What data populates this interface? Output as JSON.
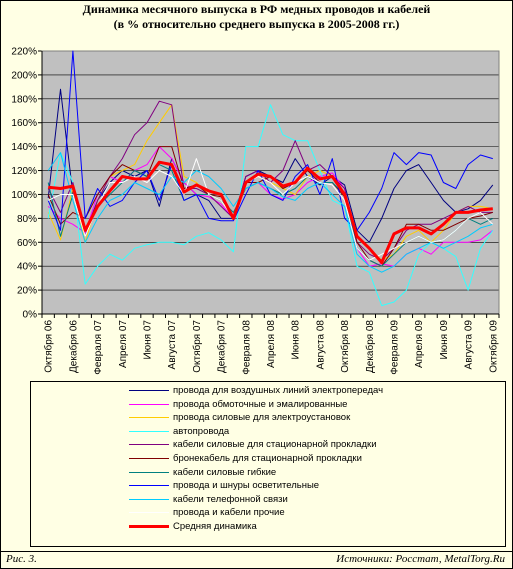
{
  "chart_data": {
    "type": "line",
    "title_lines": [
      "Динамика месячного выпуска в РФ медных проводов и кабелей",
      "(в % относительно среднего выпуска в 2005-2008 гг.)"
    ],
    "xlabel": "",
    "ylabel": "",
    "ylim": [
      0,
      220
    ],
    "yticks": [
      0,
      20,
      40,
      60,
      80,
      100,
      120,
      140,
      160,
      180,
      200,
      220
    ],
    "ytick_labels": [
      "0%",
      "20%",
      "40%",
      "60%",
      "80%",
      "100%",
      "120%",
      "140%",
      "160%",
      "180%",
      "200%",
      "220%"
    ],
    "x_count": 37,
    "x_tick_labels": [
      {
        "i": 0,
        "label": "Октября 06"
      },
      {
        "i": 2,
        "label": "Декабря 06"
      },
      {
        "i": 4,
        "label": "Февраля 07"
      },
      {
        "i": 6,
        "label": "Апреля 07"
      },
      {
        "i": 8,
        "label": "Июня 07"
      },
      {
        "i": 10,
        "label": "Августа 07"
      },
      {
        "i": 12,
        "label": "Октября 07"
      },
      {
        "i": 14,
        "label": "Декабря 07"
      },
      {
        "i": 16,
        "label": "Февраля 08"
      },
      {
        "i": 18,
        "label": "Апреля 08"
      },
      {
        "i": 20,
        "label": "Июня 08"
      },
      {
        "i": 22,
        "label": "Августа 08"
      },
      {
        "i": 24,
        "label": "Октября 08"
      },
      {
        "i": 26,
        "label": "Декабря 08"
      },
      {
        "i": 28,
        "label": "Февраля 09"
      },
      {
        "i": 30,
        "label": "Апреля 09"
      },
      {
        "i": 32,
        "label": "Июня 09"
      },
      {
        "i": 34,
        "label": "Августа 09"
      },
      {
        "i": 36,
        "label": "Октября 09"
      }
    ],
    "grid": true,
    "legend_placement": "bottom",
    "series": [
      {
        "name": "провода для воздушных линий электропередач",
        "color": "#000080",
        "width": 1,
        "values": [
          97,
          188,
          100,
          68,
          95,
          110,
          120,
          115,
          120,
          90,
          130,
          110,
          100,
          95,
          80,
          80,
          115,
          120,
          115,
          110,
          130,
          115,
          108,
          115,
          108,
          70,
          60,
          80,
          105,
          120,
          125,
          110,
          95,
          85,
          88,
          95,
          108
        ]
      },
      {
        "name": "провода обмоточные и эмалированные",
        "color": "#ff00ff",
        "width": 1,
        "values": [
          90,
          80,
          75,
          68,
          100,
          115,
          110,
          120,
          125,
          140,
          130,
          110,
          100,
          98,
          92,
          80,
          110,
          110,
          100,
          96,
          100,
          110,
          115,
          118,
          105,
          55,
          40,
          42,
          40,
          50,
          55,
          50,
          60,
          60,
          60,
          62,
          70
        ]
      },
      {
        "name": "провода силовые для электроустановок",
        "color": "#ffcc00",
        "width": 1,
        "values": [
          85,
          62,
          105,
          60,
          95,
          115,
          120,
          125,
          145,
          160,
          175,
          115,
          110,
          100,
          95,
          80,
          110,
          115,
          110,
          105,
          100,
          115,
          120,
          115,
          100,
          65,
          55,
          45,
          50,
          65,
          70,
          60,
          70,
          85,
          90,
          90,
          88
        ]
      },
      {
        "name": "автопровода",
        "color": "#33ffff",
        "width": 1,
        "values": [
          80,
          135,
          110,
          25,
          40,
          50,
          45,
          55,
          58,
          60,
          60,
          58,
          65,
          68,
          62,
          52,
          140,
          140,
          175,
          150,
          145,
          145,
          120,
          95,
          90,
          40,
          35,
          7,
          10,
          20,
          50,
          60,
          55,
          48,
          20,
          55,
          70
        ]
      },
      {
        "name": "кабели силовые для стационарной прокладки",
        "color": "#800080",
        "width": 1,
        "values": [
          105,
          85,
          110,
          65,
          95,
          115,
          130,
          150,
          160,
          178,
          175,
          105,
          105,
          100,
          90,
          80,
          115,
          120,
          110,
          120,
          145,
          120,
          125,
          115,
          105,
          60,
          50,
          45,
          55,
          70,
          75,
          75,
          80,
          85,
          90,
          85,
          85
        ]
      },
      {
        "name": "бронекабель для стационарной прокладки",
        "color": "#800000",
        "width": 1,
        "values": [
          100,
          75,
          85,
          80,
          100,
          115,
          125,
          120,
          115,
          140,
          140,
          105,
          108,
          100,
          98,
          82,
          110,
          110,
          115,
          105,
          110,
          120,
          110,
          110,
          98,
          60,
          45,
          40,
          55,
          75,
          75,
          70,
          70,
          75,
          80,
          82,
          85
        ]
      },
      {
        "name": "кабели силовые гибкие",
        "color": "#008080",
        "width": 1,
        "values": [
          110,
          65,
          100,
          70,
          90,
          100,
          110,
          120,
          115,
          125,
          120,
          95,
          100,
          100,
          95,
          85,
          105,
          110,
          105,
          100,
          105,
          115,
          110,
          110,
          100,
          55,
          45,
          40,
          50,
          60,
          65,
          60,
          62,
          70,
          80,
          75,
          80
        ]
      },
      {
        "name": "провода и шнуры осветительные",
        "color": "#0000ff",
        "width": 1,
        "values": [
          95,
          70,
          220,
          80,
          105,
          90,
          95,
          110,
          120,
          95,
          125,
          95,
          100,
          80,
          78,
          78,
          100,
          120,
          100,
          95,
          115,
          125,
          100,
          130,
          80,
          70,
          85,
          105,
          135,
          125,
          135,
          133,
          110,
          105,
          125,
          133,
          130
        ]
      },
      {
        "name": "кабели телефонной связи",
        "color": "#00ccff",
        "width": 1,
        "values": [
          120,
          135,
          95,
          60,
          80,
          95,
          100,
          110,
          105,
          100,
          115,
          110,
          120,
          115,
          105,
          90,
          105,
          110,
          105,
          98,
          95,
          105,
          110,
          100,
          90,
          50,
          40,
          35,
          40,
          50,
          55,
          60,
          55,
          60,
          65,
          72,
          75
        ]
      },
      {
        "name": "провода и кабели прочие",
        "color": "#ffffff",
        "width": 1,
        "values": [
          95,
          100,
          100,
          65,
          90,
          110,
          110,
          115,
          110,
          120,
          115,
          100,
          130,
          100,
          95,
          80,
          110,
          115,
          110,
          100,
          110,
          115,
          110,
          108,
          95,
          55,
          45,
          50,
          55,
          60,
          65,
          60,
          62,
          70,
          80,
          85,
          75
        ]
      },
      {
        "name": "Средняя динамика",
        "color": "#ff0000",
        "width": 3,
        "values": [
          106,
          105,
          107,
          70,
          90,
          103,
          115,
          113,
          113,
          127,
          125,
          102,
          108,
          103,
          100,
          80,
          110,
          117,
          115,
          107,
          110,
          122,
          113,
          115,
          100,
          65,
          55,
          43,
          67,
          72,
          72,
          67,
          75,
          85,
          85,
          87,
          88
        ]
      }
    ]
  },
  "footer": {
    "figure_label": "Рис. 3.",
    "source_text": "Источники: Росстат, MetalTorg.Ru"
  }
}
